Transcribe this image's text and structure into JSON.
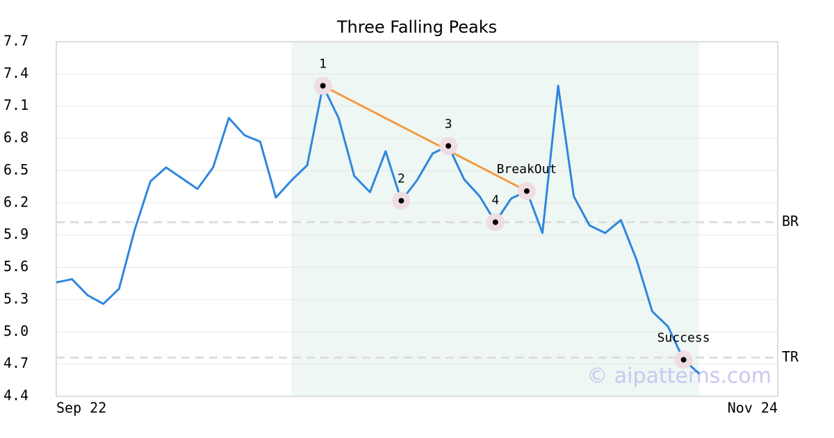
{
  "chart_data": {
    "type": "line",
    "title": "Three Falling Peaks",
    "x": [
      0,
      1,
      2,
      3,
      4,
      5,
      6,
      7,
      8,
      9,
      10,
      11,
      12,
      13,
      14,
      15,
      16,
      17,
      18,
      19,
      20,
      21,
      22,
      23,
      24,
      25,
      26,
      27,
      28,
      29,
      30,
      31,
      32,
      33,
      34,
      35,
      36,
      37,
      38,
      39,
      40,
      41
    ],
    "series": [
      {
        "color": "#2e86de",
        "values": [
          5.46,
          5.49,
          5.34,
          5.26,
          5.4,
          5.95,
          6.4,
          6.53,
          6.43,
          6.33,
          6.53,
          6.99,
          6.83,
          6.77,
          6.25,
          6.41,
          6.55,
          7.29,
          6.99,
          6.45,
          6.3,
          6.68,
          6.22,
          6.41,
          6.66,
          6.73,
          6.42,
          6.26,
          6.02,
          6.24,
          6.31,
          5.92,
          7.29,
          6.26,
          5.99,
          5.92,
          6.04,
          5.67,
          5.19,
          5.05,
          4.74,
          4.61
        ]
      }
    ],
    "xlim": [
      0,
      46
    ],
    "xticks": [
      {
        "value": 0,
        "label": "Sep 22"
      },
      {
        "value": 46,
        "label": "Nov 24"
      }
    ],
    "ylim": [
      4.4,
      7.7
    ],
    "yticks": [
      4.4,
      4.7,
      {
        "value": 5,
        "label": "5.0"
      },
      5.3,
      5.6,
      5.9,
      6.2,
      6.5,
      6.8,
      7.1,
      7.4,
      7.7
    ],
    "grid": true,
    "shaded_range": [
      15,
      41
    ],
    "levels": [
      {
        "label": "BR",
        "value": 6.02
      },
      {
        "label": "TR",
        "value": 4.76
      }
    ],
    "annotations": [
      {
        "label": "1",
        "x": 17,
        "value": 7.29
      },
      {
        "label": "2",
        "x": 22,
        "value": 6.22
      },
      {
        "label": "3",
        "x": 25,
        "value": 6.73
      },
      {
        "label": "4",
        "x": 28,
        "value": 6.02
      },
      {
        "label": "BreakOut",
        "x": 30,
        "value": 6.31
      },
      {
        "label": "Success",
        "x": 40,
        "value": 4.74
      }
    ],
    "trend_color": "#f59a42",
    "watermark": "© aipatterns.com"
  }
}
